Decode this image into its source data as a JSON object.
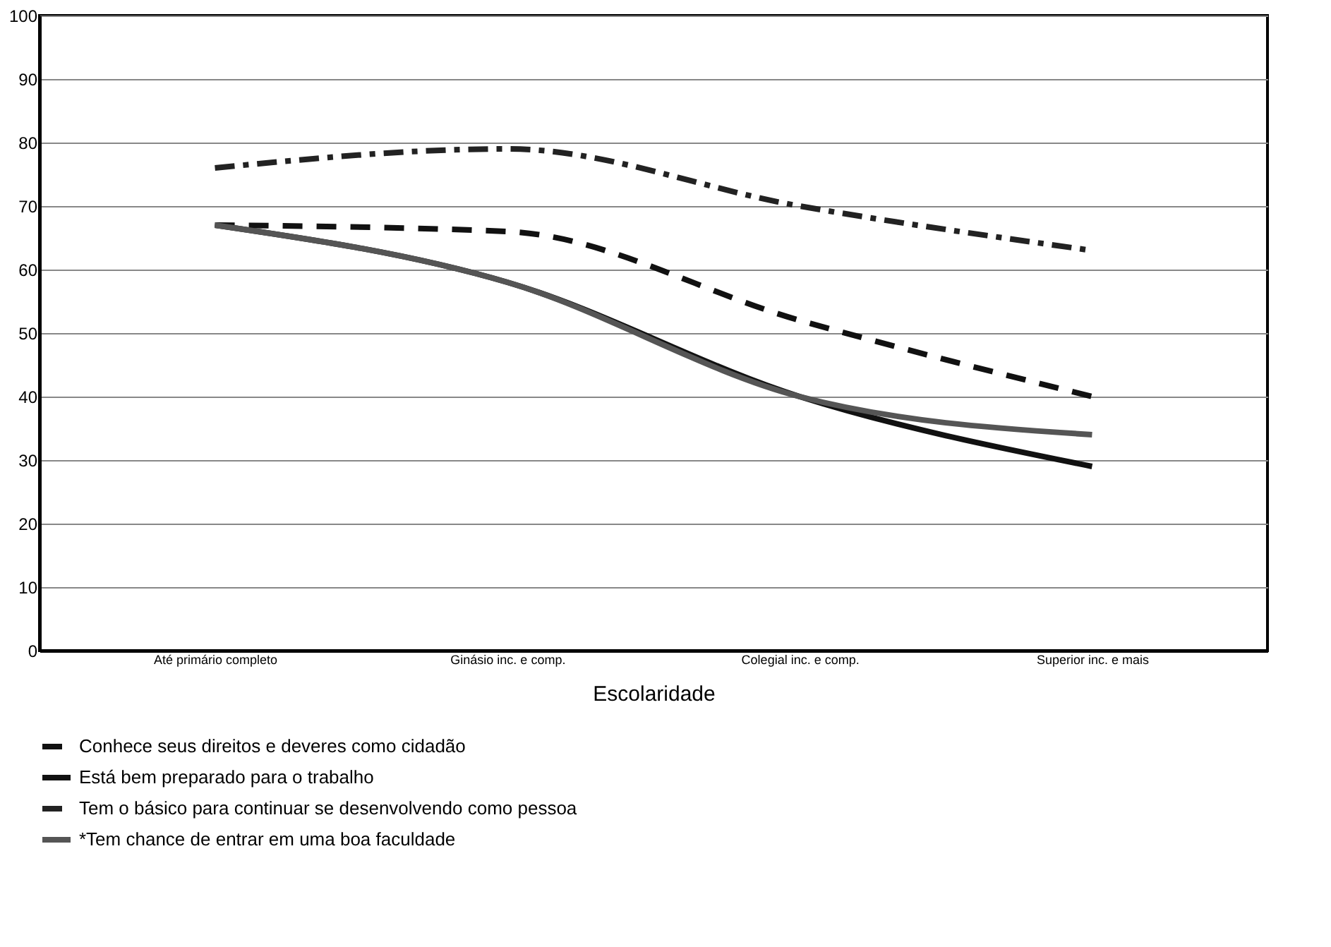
{
  "chart_data": {
    "type": "line",
    "xlabel": "Escolaridade",
    "categories": [
      "Até primário completo",
      "Ginásio inc. e comp.",
      "Colegial inc. e comp.",
      "Superior inc. e mais"
    ],
    "series": [
      {
        "name": "Conhece seus direitos e deveres como cidadão",
        "color": "#111111",
        "line_style": "dashed",
        "values": [
          67,
          66,
          52,
          40
        ]
      },
      {
        "name": "Está bem preparado para o trabalho",
        "color": "#111111",
        "line_style": "solid",
        "values": [
          67,
          58,
          40,
          29
        ]
      },
      {
        "name": "Tem o básico para continuar se desenvolvendo como pessoa",
        "color": "#222222",
        "line_style": "dotted",
        "values": [
          76,
          79,
          70,
          63
        ]
      },
      {
        "name": "*Tem chance de entrar em uma boa faculdade",
        "color": "#555555",
        "line_style": "solid",
        "values": [
          67,
          58,
          40,
          34
        ]
      }
    ],
    "ylim": [
      0,
      100
    ],
    "yticks": [
      0,
      10,
      20,
      30,
      40,
      50,
      60,
      70,
      80,
      90,
      100
    ],
    "grid": "y",
    "legend": "bottom",
    "marker": "none"
  }
}
